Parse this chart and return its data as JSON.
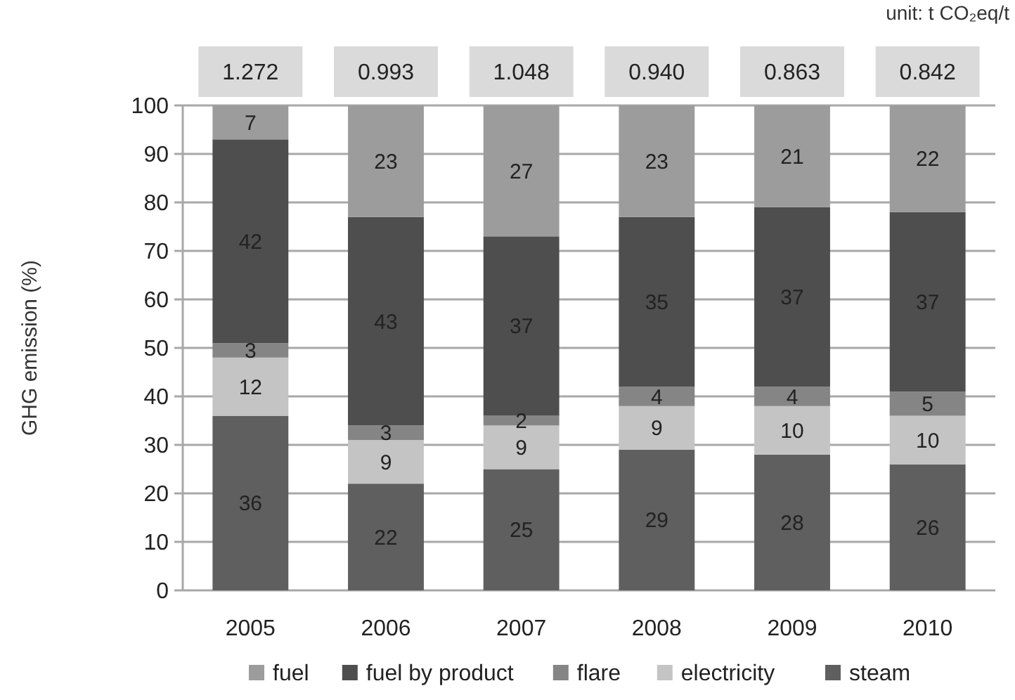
{
  "chart_data": {
    "type": "bar",
    "stacked": true,
    "ylabel": "GHG emission (%)",
    "categories": [
      "2005",
      "2006",
      "2007",
      "2008",
      "2009",
      "2010"
    ],
    "series": [
      {
        "name": "steam",
        "color": "#5f5f5f",
        "values": [
          36,
          22,
          25,
          29,
          28,
          26
        ]
      },
      {
        "name": "electricity",
        "color": "#c4c4c4",
        "values": [
          12,
          9,
          9,
          9,
          10,
          10
        ]
      },
      {
        "name": "flare",
        "color": "#858585",
        "values": [
          3,
          3,
          2,
          4,
          4,
          5
        ]
      },
      {
        "name": "fuel by product",
        "color": "#4e4e4e",
        "values": [
          42,
          43,
          37,
          35,
          37,
          37
        ]
      },
      {
        "name": "fuel",
        "color": "#9c9c9c",
        "values": [
          7,
          23,
          27,
          23,
          21,
          22
        ]
      }
    ],
    "ylim": [
      0,
      100
    ],
    "yticks": [
      0,
      10,
      20,
      30,
      40,
      50,
      60,
      70,
      80,
      90,
      100
    ],
    "grid": "y",
    "data_labels": true,
    "legend": "bottom",
    "annotations": [
      "unit: t CO₂eq/t",
      {
        "text": "1.272",
        "x": "2005",
        "y": 100
      },
      {
        "text": "0.993",
        "x": "2006",
        "y": 100
      },
      {
        "text": "1.048",
        "x": "2007",
        "y": 100
      },
      {
        "text": "0.940",
        "x": "2008",
        "y": 100
      },
      {
        "text": "0.863",
        "x": "2009",
        "y": 100
      },
      {
        "text": "0.842",
        "x": "2010",
        "y": 100
      }
    ]
  }
}
